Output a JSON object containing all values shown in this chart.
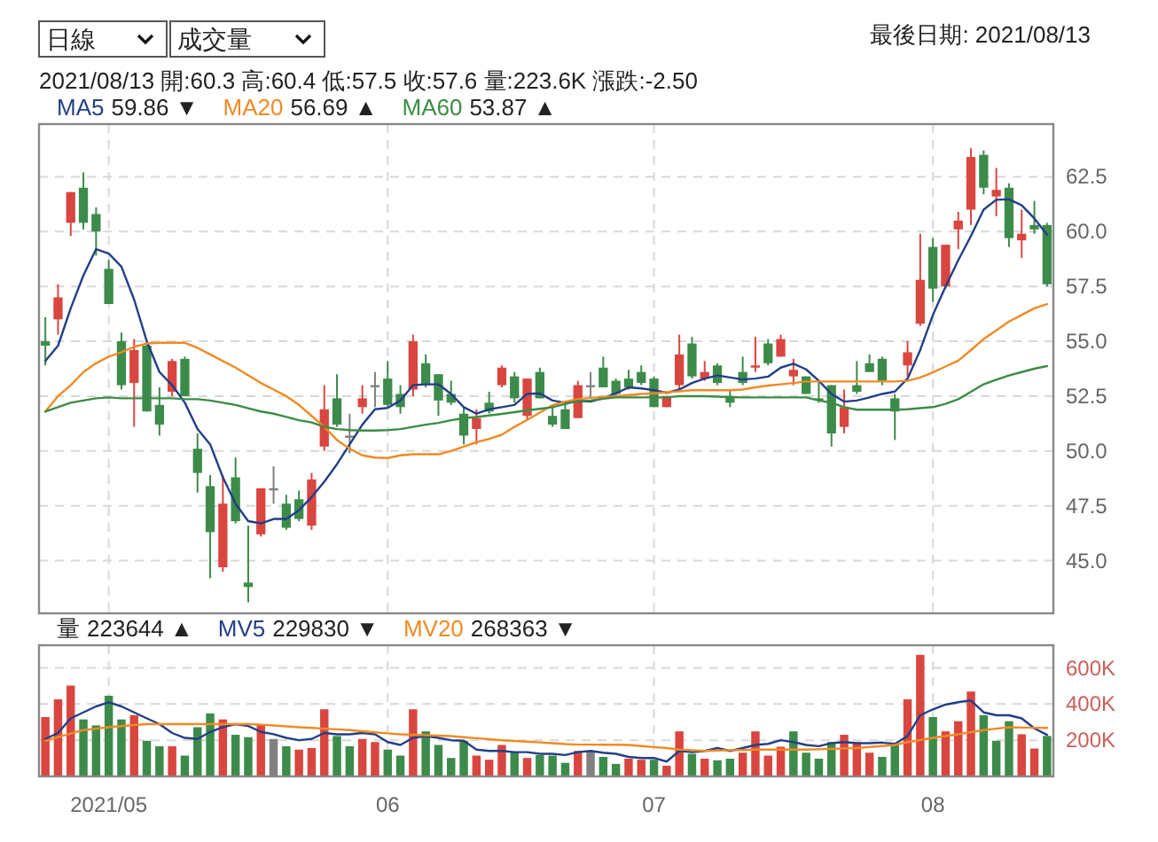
{
  "chart_data": [
    {
      "type": "other",
      "annotations": [
        "日線",
        "成交量"
      ]
    },
    {
      "type": "candlestick",
      "title": "最後日期: 2021/08/13",
      "subtitle": "2021/08/13 開:60.3 高:60.4 低:57.5 收:57.6 量:223.6K 漲跌:-2.50",
      "categories": [
        null,
        null,
        null,
        null,
        null,
        "2021/05",
        null,
        null,
        null,
        null,
        null,
        null,
        null,
        null,
        null,
        null,
        null,
        null,
        null,
        null,
        null,
        null,
        null,
        null,
        null,
        null,
        null,
        "06",
        null,
        null,
        null,
        null,
        null,
        null,
        null,
        null,
        null,
        null,
        null,
        null,
        null,
        null,
        null,
        null,
        null,
        null,
        null,
        null,
        "07",
        null,
        null,
        null,
        null,
        null,
        null,
        null,
        null,
        null,
        null,
        null,
        null,
        null,
        null,
        null,
        null,
        null,
        null,
        null,
        null,
        null,
        "08",
        null,
        null,
        null,
        null,
        null,
        null,
        null,
        null,
        null
      ],
      "ohlc": [
        [
          55.0,
          56.1,
          53.9,
          54.8
        ],
        [
          56.0,
          57.6,
          55.3,
          57.0
        ],
        [
          60.4,
          61.8,
          59.8,
          61.8
        ],
        [
          62.0,
          62.7,
          60.1,
          60.4
        ],
        [
          60.8,
          61.1,
          58.9,
          60.0
        ],
        [
          58.3,
          58.7,
          56.7,
          56.7
        ],
        [
          55.0,
          55.4,
          52.8,
          53.0
        ],
        [
          53.1,
          55.1,
          51.1,
          54.6
        ],
        [
          54.8,
          55.0,
          51.8,
          51.8
        ],
        [
          52.1,
          52.9,
          50.7,
          51.2
        ],
        [
          52.7,
          54.2,
          52.5,
          54.1
        ],
        [
          54.2,
          54.3,
          52.5,
          52.5
        ],
        [
          50.1,
          50.8,
          48.1,
          49.0
        ],
        [
          48.4,
          48.9,
          44.2,
          46.3
        ],
        [
          44.7,
          48.9,
          44.5,
          47.6
        ],
        [
          48.8,
          49.7,
          46.7,
          46.8
        ],
        [
          44.0,
          46.6,
          43.1,
          43.8
        ],
        [
          46.2,
          48.3,
          46.1,
          48.3
        ],
        [
          48.3,
          49.3,
          47.6,
          48.3
        ],
        [
          47.6,
          48.0,
          46.4,
          46.5
        ],
        [
          47.8,
          48.2,
          46.8,
          46.9
        ],
        [
          46.6,
          49.0,
          46.4,
          48.7
        ],
        [
          50.2,
          53.0,
          50.0,
          51.9
        ],
        [
          52.4,
          53.5,
          51.1,
          51.2
        ],
        [
          50.7,
          51.7,
          49.9,
          50.7
        ],
        [
          52.0,
          53.0,
          51.7,
          52.4
        ],
        [
          53.0,
          53.6,
          52.0,
          53.0
        ],
        [
          53.3,
          54.1,
          52.0,
          52.1
        ],
        [
          52.6,
          53.0,
          51.7,
          52.0
        ],
        [
          52.8,
          55.3,
          52.5,
          55.0
        ],
        [
          54.0,
          54.4,
          52.9,
          53.0
        ],
        [
          53.5,
          53.5,
          51.6,
          52.3
        ],
        [
          52.6,
          53.2,
          52.1,
          52.2
        ],
        [
          51.7,
          52.0,
          50.3,
          50.7
        ],
        [
          51.0,
          51.9,
          50.3,
          51.5
        ],
        [
          52.2,
          52.7,
          51.7,
          51.8
        ],
        [
          53.0,
          53.9,
          52.9,
          53.8
        ],
        [
          53.4,
          53.6,
          52.2,
          52.4
        ],
        [
          51.6,
          53.3,
          51.4,
          53.3
        ],
        [
          53.6,
          53.8,
          52.4,
          52.4
        ],
        [
          51.6,
          52.0,
          51.1,
          51.2
        ],
        [
          51.9,
          52.2,
          51.0,
          51.0
        ],
        [
          51.5,
          53.2,
          51.5,
          53.0
        ],
        [
          53.0,
          53.6,
          52.4,
          53.0
        ],
        [
          53.8,
          54.3,
          52.9,
          52.9
        ],
        [
          53.2,
          53.3,
          52.5,
          52.6
        ],
        [
          53.3,
          53.7,
          52.8,
          52.9
        ],
        [
          53.6,
          53.9,
          53.0,
          53.1
        ],
        [
          53.3,
          53.4,
          52.0,
          52.0
        ],
        [
          52.0,
          52.5,
          52.0,
          52.5
        ],
        [
          53.0,
          55.3,
          52.8,
          54.4
        ],
        [
          54.9,
          55.2,
          53.3,
          53.4
        ],
        [
          53.3,
          54.1,
          53.2,
          53.6
        ],
        [
          53.9,
          54.0,
          53.0,
          53.1
        ],
        [
          52.5,
          52.8,
          52.0,
          52.2
        ],
        [
          53.6,
          54.3,
          53.0,
          53.1
        ],
        [
          53.8,
          55.2,
          53.6,
          53.9
        ],
        [
          54.9,
          55.1,
          53.9,
          54.0
        ],
        [
          54.3,
          55.3,
          54.3,
          55.1
        ],
        [
          53.4,
          54.2,
          53.0,
          53.7
        ],
        [
          53.4,
          53.4,
          52.6,
          52.6
        ],
        [
          52.4,
          53.2,
          52.2,
          52.3
        ],
        [
          53.0,
          53.0,
          50.2,
          50.8
        ],
        [
          51.1,
          52.8,
          50.8,
          52.0
        ],
        [
          53.0,
          54.1,
          52.6,
          52.7
        ],
        [
          54.0,
          54.4,
          53.6,
          53.6
        ],
        [
          54.2,
          54.3,
          53.0,
          53.2
        ],
        [
          52.4,
          52.6,
          50.5,
          51.8
        ],
        [
          53.9,
          55.0,
          53.4,
          54.5
        ],
        [
          55.8,
          59.9,
          55.7,
          57.8
        ],
        [
          59.3,
          59.7,
          56.8,
          57.4
        ],
        [
          57.5,
          59.4,
          57.4,
          59.4
        ],
        [
          60.1,
          60.9,
          59.2,
          60.5
        ],
        [
          61.0,
          63.8,
          60.3,
          63.4
        ],
        [
          63.5,
          63.7,
          61.7,
          62.0
        ],
        [
          61.6,
          62.9,
          60.7,
          61.9
        ],
        [
          62.0,
          62.2,
          59.3,
          59.7
        ],
        [
          59.6,
          61.0,
          58.8,
          59.9
        ],
        [
          60.3,
          61.4,
          59.9,
          60.1
        ],
        [
          60.3,
          60.4,
          57.5,
          57.6
        ]
      ],
      "colors": [
        "#3d8b4a",
        "#d9463f",
        "#d9463f",
        "#3d8b4a",
        "#3d8b4a",
        "#3d8b4a",
        "#3d8b4a",
        "#d9463f",
        "#3d8b4a",
        "#3d8b4a",
        "#d9463f",
        "#3d8b4a",
        "#3d8b4a",
        "#3d8b4a",
        "#d9463f",
        "#3d8b4a",
        "#3d8b4a",
        "#d9463f",
        "#808080",
        "#3d8b4a",
        "#3d8b4a",
        "#d9463f",
        "#d9463f",
        "#3d8b4a",
        "#808080",
        "#d9463f",
        "#808080",
        "#3d8b4a",
        "#3d8b4a",
        "#d9463f",
        "#3d8b4a",
        "#3d8b4a",
        "#3d8b4a",
        "#3d8b4a",
        "#d9463f",
        "#3d8b4a",
        "#d9463f",
        "#3d8b4a",
        "#d9463f",
        "#3d8b4a",
        "#3d8b4a",
        "#3d8b4a",
        "#d9463f",
        "#808080",
        "#3d8b4a",
        "#3d8b4a",
        "#3d8b4a",
        "#3d8b4a",
        "#3d8b4a",
        "#d9463f",
        "#d9463f",
        "#3d8b4a",
        "#d9463f",
        "#3d8b4a",
        "#3d8b4a",
        "#3d8b4a",
        "#d9463f",
        "#3d8b4a",
        "#d9463f",
        "#d9463f",
        "#3d8b4a",
        "#3d8b4a",
        "#3d8b4a",
        "#d9463f",
        "#3d8b4a",
        "#3d8b4a",
        "#3d8b4a",
        "#3d8b4a",
        "#d9463f",
        "#d9463f",
        "#3d8b4a",
        "#d9463f",
        "#d9463f",
        "#d9463f",
        "#3d8b4a",
        "#d9463f",
        "#3d8b4a",
        "#d9463f",
        "#3d8b4a",
        "#3d8b4a"
      ],
      "series": [
        {
          "name": "MA5",
          "type": "line",
          "color": "#233f86",
          "values": [
            54.1,
            54.8,
            56.5,
            58.0,
            59.2,
            59.0,
            58.4,
            56.9,
            55.0,
            53.6,
            53.0,
            52.2,
            51.0,
            50.3,
            48.8,
            47.6,
            46.8,
            46.7,
            46.9,
            46.9,
            47.3,
            47.9,
            48.6,
            49.4,
            50.3,
            51.2,
            51.9,
            51.96,
            52.3,
            53.0,
            53.04,
            53.04,
            52.6,
            52.0,
            51.7,
            51.9,
            52.0,
            52.1,
            52.6,
            52.63,
            52.3,
            52.2,
            52.28,
            52.25,
            52.4,
            52.63,
            52.9,
            52.85,
            52.77,
            52.65,
            52.8,
            53.1,
            53.3,
            53.44,
            53.35,
            53.26,
            53.3,
            53.39,
            53.8,
            53.98,
            53.72,
            53.2,
            52.6,
            52.25,
            52.3,
            52.44,
            52.6,
            52.71,
            53.3,
            54.6,
            56.2,
            57.5,
            58.7,
            59.8,
            61.0,
            61.45,
            61.47,
            61.2,
            60.6,
            59.86
          ]
        },
        {
          "name": "MA20",
          "type": "line",
          "color": "#f08a24",
          "values": [
            51.8,
            52.5,
            53.0,
            53.6,
            54.0,
            54.3,
            54.5,
            54.75,
            54.9,
            54.93,
            54.93,
            54.93,
            54.7,
            54.4,
            54.1,
            53.8,
            53.45,
            53.1,
            52.8,
            52.5,
            52.1,
            51.6,
            51.1,
            50.5,
            50.1,
            49.8,
            49.7,
            49.68,
            49.8,
            49.85,
            49.85,
            49.85,
            50.0,
            50.2,
            50.4,
            50.55,
            50.74,
            51.1,
            51.42,
            51.75,
            52.09,
            52.25,
            52.36,
            52.42,
            52.46,
            52.5,
            52.55,
            52.6,
            52.63,
            52.68,
            52.72,
            52.77,
            52.77,
            52.77,
            52.77,
            52.8,
            52.9,
            52.98,
            53.04,
            53.1,
            53.17,
            53.17,
            53.17,
            53.17,
            53.17,
            53.17,
            53.17,
            53.17,
            53.2,
            53.35,
            53.58,
            53.85,
            54.12,
            54.6,
            55.1,
            55.5,
            55.9,
            56.2,
            56.5,
            56.69
          ]
        },
        {
          "name": "MA60",
          "type": "line",
          "color": "#3c8c45",
          "values": [
            51.8,
            52.0,
            52.2,
            52.3,
            52.4,
            52.44,
            52.4,
            52.4,
            52.4,
            52.4,
            52.4,
            52.36,
            52.36,
            52.3,
            52.2,
            52.1,
            51.95,
            51.8,
            51.7,
            51.55,
            51.4,
            51.3,
            51.1,
            51.0,
            50.95,
            50.93,
            50.93,
            50.95,
            51.0,
            51.1,
            51.2,
            51.28,
            51.4,
            51.5,
            51.55,
            51.62,
            51.69,
            51.77,
            51.85,
            51.92,
            52.0,
            52.14,
            52.28,
            52.3,
            52.38,
            52.44,
            52.44,
            52.44,
            52.44,
            52.44,
            52.5,
            52.5,
            52.5,
            52.48,
            52.46,
            52.44,
            52.44,
            52.44,
            52.44,
            52.44,
            52.44,
            52.3,
            52.2,
            52.0,
            51.88,
            51.88,
            51.88,
            51.88,
            51.9,
            51.95,
            52.0,
            52.15,
            52.36,
            52.7,
            53.04,
            53.25,
            53.44,
            53.6,
            53.75,
            53.87
          ]
        }
      ],
      "annotations": [
        "59.86 ▼",
        "56.69 ▲",
        "53.87 ▲"
      ],
      "ylim": [
        42.6,
        64.9
      ],
      "yticks": [
        {
          "value": 45,
          "label": "45.0"
        },
        {
          "value": 47.5,
          "label": "47.5"
        },
        {
          "value": 50,
          "label": "50.0"
        },
        {
          "value": 52.5,
          "label": "52.5"
        },
        {
          "value": 55,
          "label": "55.0"
        },
        {
          "value": 57.5,
          "label": "57.5"
        },
        {
          "value": 60,
          "label": "60.0"
        },
        {
          "value": 62.5,
          "label": "62.5"
        }
      ],
      "grid": true,
      "tick_labels": "y",
      "legend": "top left"
    },
    {
      "type": "bar",
      "categories": [
        null,
        null,
        null,
        null,
        null,
        "2021/05",
        null,
        null,
        null,
        null,
        null,
        null,
        null,
        null,
        null,
        null,
        null,
        null,
        null,
        null,
        null,
        null,
        null,
        null,
        null,
        null,
        null,
        "06",
        null,
        null,
        null,
        null,
        null,
        null,
        null,
        null,
        null,
        null,
        null,
        null,
        null,
        null,
        null,
        null,
        null,
        null,
        null,
        null,
        "07",
        null,
        null,
        null,
        null,
        null,
        null,
        null,
        null,
        null,
        null,
        null,
        null,
        null,
        null,
        null,
        null,
        null,
        null,
        null,
        null,
        null,
        "08",
        null,
        null,
        null,
        null,
        null,
        null,
        null,
        null,
        null
      ],
      "series": [
        {
          "name": "量",
          "type": "bar",
          "values": [
            328000,
            426000,
            502000,
            315000,
            282000,
            446000,
            315000,
            338000,
            197000,
            167000,
            167000,
            115000,
            272000,
            348000,
            315000,
            230000,
            217000,
            289000,
            207000,
            167000,
            148000,
            157000,
            371000,
            223000,
            167000,
            207000,
            190000,
            148000,
            115000,
            371000,
            249000,
            174000,
            102000,
            197000,
            115000,
            92000,
            174000,
            134000,
            102000,
            118000,
            115000,
            75000,
            141000,
            141000,
            108000,
            69000,
            98000,
            92000,
            92000,
            59000,
            249000,
            125000,
            98000,
            89000,
            98000,
            131000,
            249000,
            115000,
            164000,
            249000,
            131000,
            98000,
            190000,
            230000,
            190000,
            131000,
            108000,
            180000,
            426000,
            672000,
            328000,
            249000,
            305000,
            469000,
            338000,
            197000,
            305000,
            233000,
            154000,
            223644
          ],
          "colors": [
            "#d9463f",
            "#d9463f",
            "#d9463f",
            "#3d8b4a",
            "#3d8b4a",
            "#3d8b4a",
            "#3d8b4a",
            "#d9463f",
            "#3d8b4a",
            "#3d8b4a",
            "#d9463f",
            "#3d8b4a",
            "#3d8b4a",
            "#3d8b4a",
            "#d9463f",
            "#3d8b4a",
            "#3d8b4a",
            "#d9463f",
            "#808080",
            "#3d8b4a",
            "#d9463f",
            "#d9463f",
            "#d9463f",
            "#3d8b4a",
            "#3d8b4a",
            "#d9463f",
            "#d9463f",
            "#3d8b4a",
            "#3d8b4a",
            "#d9463f",
            "#3d8b4a",
            "#3d8b4a",
            "#3d8b4a",
            "#3d8b4a",
            "#d9463f",
            "#d9463f",
            "#d9463f",
            "#3d8b4a",
            "#d9463f",
            "#3d8b4a",
            "#3d8b4a",
            "#3d8b4a",
            "#d9463f",
            "#808080",
            "#3d8b4a",
            "#3d8b4a",
            "#d9463f",
            "#d9463f",
            "#3d8b4a",
            "#d9463f",
            "#d9463f",
            "#3d8b4a",
            "#d9463f",
            "#3d8b4a",
            "#3d8b4a",
            "#d9463f",
            "#d9463f",
            "#d9463f",
            "#d9463f",
            "#3d8b4a",
            "#3d8b4a",
            "#3d8b4a",
            "#3d8b4a",
            "#d9463f",
            "#d9463f",
            "#d9463f",
            "#3d8b4a",
            "#3d8b4a",
            "#d9463f",
            "#d9463f",
            "#3d8b4a",
            "#d9463f",
            "#d9463f",
            "#d9463f",
            "#3d8b4a",
            "#3d8b4a",
            "#3d8b4a",
            "#d9463f",
            "#d9463f",
            "#3d8b4a"
          ]
        },
        {
          "name": "MV5",
          "type": "line",
          "color": "#233f86",
          "values": [
            207000,
            240000,
            321000,
            354000,
            387000,
            410000,
            387000,
            354000,
            321000,
            289000,
            240000,
            213000,
            207000,
            246000,
            272000,
            289000,
            279000,
            246000,
            233000,
            213000,
            200000,
            207000,
            240000,
            233000,
            233000,
            240000,
            233000,
            190000,
            174000,
            213000,
            223000,
            213000,
            200000,
            197000,
            148000,
            141000,
            141000,
            134000,
            134000,
            125000,
            125000,
            118000,
            134000,
            141000,
            131000,
            125000,
            108000,
            102000,
            102000,
            82000,
            141000,
            134000,
            141000,
            157000,
            141000,
            157000,
            174000,
            180000,
            200000,
            190000,
            174000,
            167000,
            184000,
            190000,
            184000,
            184000,
            187000,
            180000,
            223000,
            338000,
            371000,
            397000,
            410000,
            420000,
            354000,
            338000,
            338000,
            321000,
            266000,
            229830
          ]
        },
        {
          "name": "MV20",
          "type": "line",
          "color": "#f08a24",
          "values": [
            197000,
            217000,
            237000,
            256000,
            264000,
            272000,
            278000,
            284000,
            289000,
            289000,
            289000,
            289000,
            289000,
            289000,
            289000,
            289000,
            289000,
            286000,
            282000,
            277000,
            272000,
            268000,
            264000,
            260000,
            256000,
            250000,
            244000,
            238000,
            233000,
            230000,
            228000,
            225000,
            223000,
            217000,
            211000,
            206000,
            200000,
            196000,
            192000,
            188000,
            184000,
            179000,
            176000,
            176000,
            175000,
            175000,
            174000,
            168000,
            162000,
            157000,
            148000,
            145000,
            141000,
            143000,
            145000,
            146000,
            148000,
            148000,
            148000,
            148000,
            148000,
            150000,
            152000,
            155000,
            157000,
            163000,
            168000,
            174000,
            190000,
            201000,
            213000,
            223000,
            233000,
            245000,
            256000,
            264000,
            272000,
            270000,
            269000,
            268363
          ]
        }
      ],
      "annotations": [
        "223644 ▲",
        "229830 ▼",
        "268363 ▼"
      ],
      "ylim": [
        0,
        725000
      ],
      "yticks": [
        {
          "value": 200000,
          "label": "200K"
        },
        {
          "value": 400000,
          "label": "400K"
        },
        {
          "value": 600000,
          "label": "600K"
        }
      ],
      "grid": true,
      "legend": "top left"
    }
  ]
}
